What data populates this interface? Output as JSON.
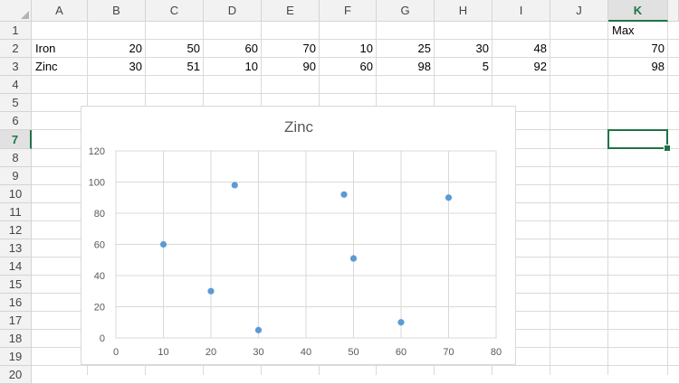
{
  "spreadsheet": {
    "columns": [
      "A",
      "B",
      "C",
      "D",
      "E",
      "F",
      "G",
      "H",
      "I",
      "J",
      "K"
    ],
    "rows": [
      "1",
      "2",
      "3",
      "4",
      "5",
      "6",
      "7",
      "8",
      "9",
      "10",
      "11",
      "12",
      "13",
      "14",
      "15",
      "16",
      "17",
      "18",
      "19",
      "20"
    ],
    "selected_column": "K",
    "selected_row": "7",
    "cells": {
      "K1": "Max",
      "A2": "Iron",
      "B2": "20",
      "C2": "50",
      "D2": "60",
      "E2": "70",
      "F2": "10",
      "G2": "25",
      "H2": "30",
      "I2": "48",
      "K2": "70",
      "A3": "Zinc",
      "B3": "30",
      "C3": "51",
      "D3": "10",
      "E3": "90",
      "F3": "60",
      "G3": "98",
      "H3": "5",
      "I3": "92",
      "K3": "98"
    },
    "accent_color": "#217346"
  },
  "chart_data": {
    "type": "scatter",
    "title": "Zinc",
    "xlabel": "",
    "ylabel": "",
    "xlim": [
      0,
      80
    ],
    "ylim": [
      0,
      120
    ],
    "x_ticks": [
      "0",
      "10",
      "20",
      "30",
      "40",
      "50",
      "60",
      "70",
      "80"
    ],
    "y_ticks": [
      "0",
      "20",
      "40",
      "60",
      "80",
      "100",
      "120"
    ],
    "grid": true,
    "marker_color": "#5b9bd5",
    "series": [
      {
        "x": [
          20,
          50,
          60,
          70,
          10,
          25,
          30,
          48
        ],
        "y": [
          30,
          51,
          10,
          90,
          60,
          98,
          5,
          92
        ]
      }
    ]
  }
}
